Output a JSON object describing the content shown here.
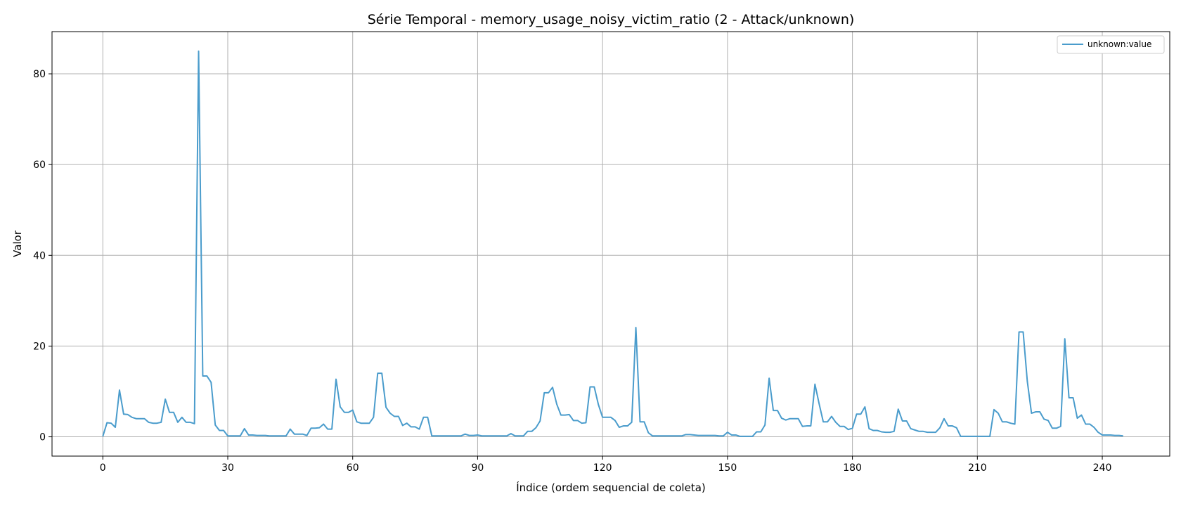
{
  "chart_data": {
    "type": "line",
    "title": "Série Temporal - memory_usage_noisy_victim_ratio (2 - Attack/unknown)",
    "xlabel": "Índice (ordem sequencial de coleta)",
    "ylabel": "Valor",
    "xlim": [
      -12.2,
      256.2
    ],
    "ylim": [
      -4.25,
      89.3
    ],
    "xticks": [
      0,
      30,
      60,
      90,
      120,
      150,
      180,
      210,
      240
    ],
    "yticks": [
      0,
      20,
      40,
      60,
      80
    ],
    "grid": true,
    "legend_position": "top-right",
    "series": [
      {
        "name": "unknown:value",
        "color": "#4a9ccc",
        "values": [
          0.1,
          3.1,
          3.0,
          2.1,
          10.3,
          5.0,
          4.9,
          4.3,
          4.0,
          4.0,
          4.0,
          3.2,
          3.0,
          3.0,
          3.2,
          8.3,
          5.4,
          5.4,
          3.2,
          4.3,
          3.2,
          3.2,
          2.9,
          85.0,
          13.4,
          13.4,
          12.0,
          2.6,
          1.4,
          1.4,
          0.2,
          0.2,
          0.2,
          0.2,
          1.8,
          0.4,
          0.4,
          0.3,
          0.3,
          0.3,
          0.2,
          0.2,
          0.2,
          0.2,
          0.2,
          1.7,
          0.6,
          0.6,
          0.6,
          0.3,
          1.9,
          1.9,
          2.0,
          2.8,
          1.7,
          1.7,
          12.7,
          6.6,
          5.4,
          5.4,
          5.9,
          3.3,
          3.0,
          3.0,
          3.0,
          4.3,
          14.0,
          14.0,
          6.5,
          5.2,
          4.5,
          4.5,
          2.5,
          3.0,
          2.2,
          2.2,
          1.7,
          4.3,
          4.3,
          0.2,
          0.2,
          0.2,
          0.2,
          0.2,
          0.2,
          0.2,
          0.2,
          0.6,
          0.3,
          0.3,
          0.4,
          0.2,
          0.2,
          0.2,
          0.2,
          0.2,
          0.2,
          0.2,
          0.7,
          0.2,
          0.2,
          0.2,
          1.2,
          1.2,
          2.0,
          3.5,
          9.7,
          9.7,
          10.9,
          7.2,
          4.8,
          4.8,
          4.9,
          3.6,
          3.6,
          3.0,
          3.1,
          11.0,
          11.0,
          7.1,
          4.3,
          4.3,
          4.3,
          3.6,
          2.1,
          2.4,
          2.4,
          3.2,
          24.1,
          3.3,
          3.3,
          0.9,
          0.2,
          0.2,
          0.2,
          0.2,
          0.2,
          0.2,
          0.2,
          0.2,
          0.5,
          0.5,
          0.4,
          0.3,
          0.3,
          0.3,
          0.3,
          0.3,
          0.2,
          0.2,
          1.0,
          0.4,
          0.4,
          0.1,
          0.1,
          0.1,
          0.1,
          1.1,
          1.1,
          2.6,
          12.9,
          5.8,
          5.8,
          4.1,
          3.7,
          4.0,
          4.0,
          4.0,
          2.3,
          2.4,
          2.4,
          11.6,
          7.3,
          3.3,
          3.3,
          4.5,
          3.2,
          2.3,
          2.3,
          1.6,
          1.9,
          5.0,
          5.0,
          6.6,
          1.8,
          1.4,
          1.4,
          1.1,
          1.0,
          1.0,
          1.2,
          6.1,
          3.5,
          3.5,
          1.8,
          1.5,
          1.2,
          1.2,
          1.0,
          1.0,
          1.0,
          2.0,
          4.0,
          2.4,
          2.4,
          2.0,
          0.1,
          0.1,
          0.1,
          0.1,
          0.1,
          0.1,
          0.1,
          0.1,
          6.0,
          5.2,
          3.3,
          3.3,
          3.0,
          2.8,
          23.1,
          23.1,
          12.2,
          5.2,
          5.5,
          5.5,
          3.9,
          3.6,
          1.9,
          1.9,
          2.3,
          21.6,
          8.6,
          8.6,
          4.1,
          4.8,
          2.8,
          2.8,
          2.1,
          1.0,
          0.4,
          0.4,
          0.4,
          0.3,
          0.3,
          0.2
        ]
      }
    ]
  }
}
